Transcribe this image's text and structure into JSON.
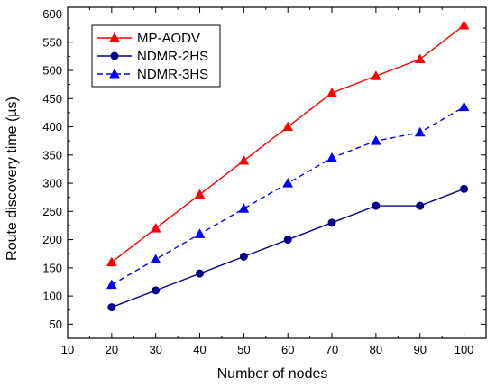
{
  "chart_data": {
    "type": "line",
    "title": "",
    "xlabel": "Number of nodes",
    "ylabel": "Route discovery time (µs)",
    "xlim": [
      10,
      105
    ],
    "ylim": [
      25,
      612
    ],
    "x_ticks": [
      10,
      20,
      30,
      40,
      50,
      60,
      70,
      80,
      90,
      100
    ],
    "y_ticks": [
      50,
      100,
      150,
      200,
      250,
      300,
      350,
      400,
      450,
      500,
      550,
      600
    ],
    "grid": false,
    "legend_position": "top-left",
    "x": [
      20,
      30,
      40,
      50,
      60,
      70,
      80,
      90,
      100
    ],
    "series": [
      {
        "name": "MP-AODV",
        "values": [
          160,
          220,
          280,
          340,
          400,
          460,
          490,
          520,
          580
        ],
        "color": "#ff0000",
        "marker": "triangle",
        "line_style": "solid"
      },
      {
        "name": "NDMR-2HS",
        "values": [
          80,
          110,
          140,
          170,
          200,
          230,
          260,
          260,
          290
        ],
        "color": "#00008b",
        "marker": "circle",
        "line_style": "solid"
      },
      {
        "name": "NDMR-3HS",
        "values": [
          120,
          165,
          210,
          255,
          300,
          345,
          375,
          390,
          435
        ],
        "color": "#0000ff",
        "marker": "triangle",
        "line_style": "dashed"
      }
    ]
  }
}
